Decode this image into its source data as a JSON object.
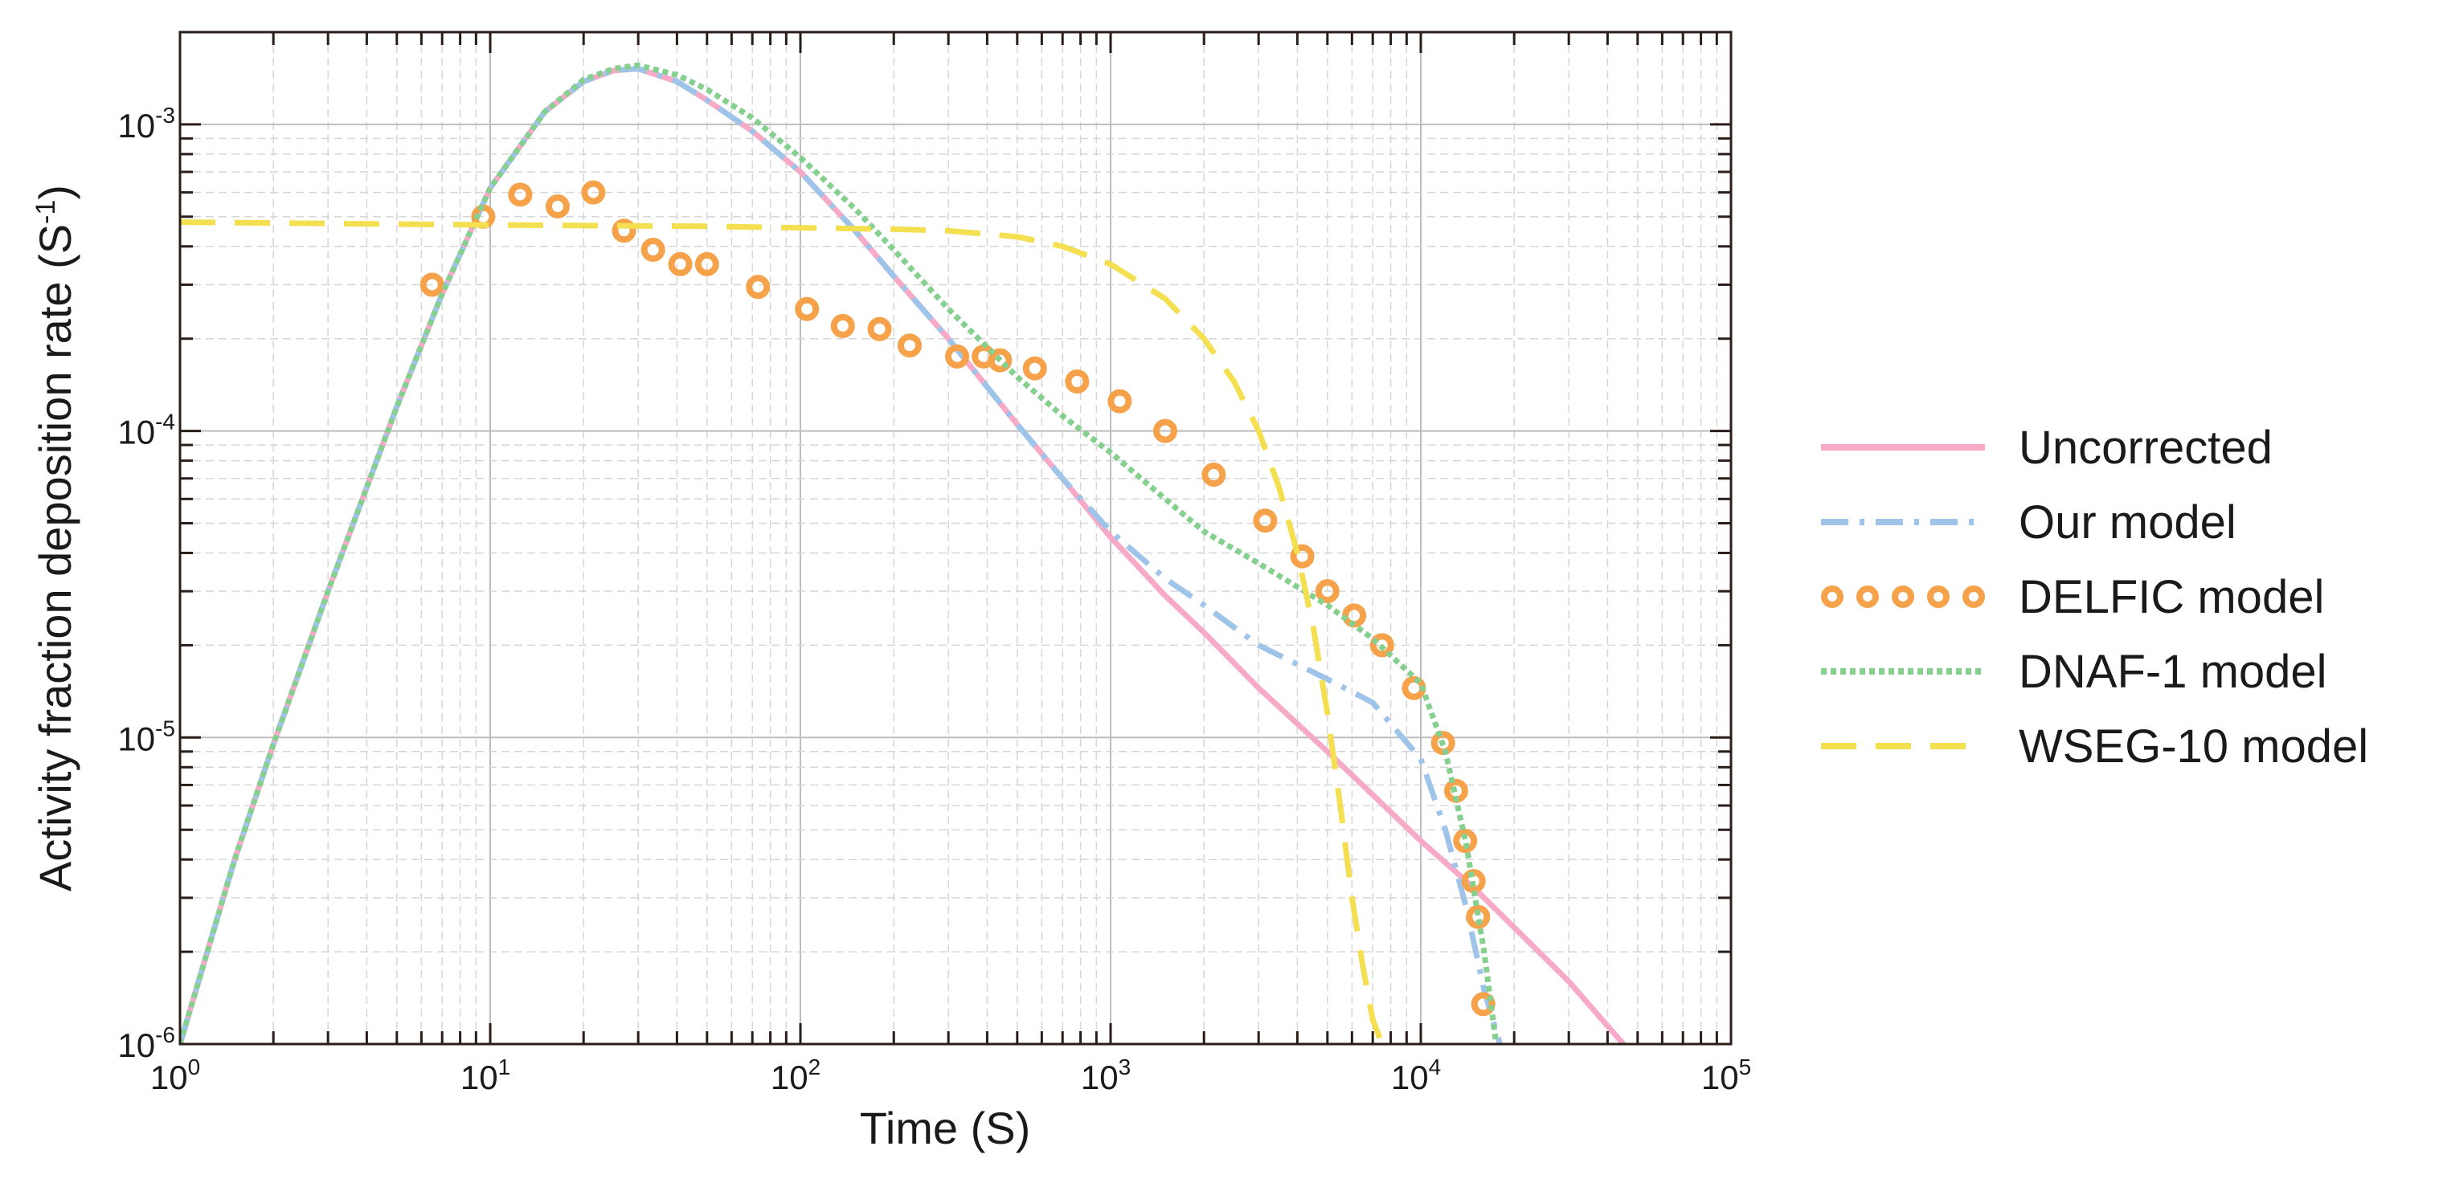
{
  "chart_data": {
    "type": "line",
    "title": "",
    "xlabel": "Time (S)",
    "ylabel": "Activity fraction deposition rate (S",
    "ylabel_sup": "-1",
    "ylabel_close": ")",
    "xscale": "log",
    "yscale": "log",
    "xlim": [
      1,
      100000
    ],
    "ylim": [
      1e-06,
      0.002
    ],
    "grid": true,
    "legend_position": "right",
    "x_ticks": [
      {
        "base": "10",
        "exp": "0"
      },
      {
        "base": "10",
        "exp": "1"
      },
      {
        "base": "10",
        "exp": "2"
      },
      {
        "base": "10",
        "exp": "3"
      },
      {
        "base": "10",
        "exp": "4"
      },
      {
        "base": "10",
        "exp": "5"
      }
    ],
    "y_ticks": [
      {
        "base": "10",
        "exp": "-6"
      },
      {
        "base": "10",
        "exp": "-5"
      },
      {
        "base": "10",
        "exp": "-4"
      },
      {
        "base": "10",
        "exp": "-3"
      }
    ],
    "series": [
      {
        "name": "Uncorrected",
        "color": "#f7aac8",
        "style": "solid",
        "x": [
          1,
          1.5,
          2,
          3,
          5,
          7,
          10,
          15,
          20,
          25,
          30,
          40,
          50,
          70,
          100,
          150,
          200,
          300,
          500,
          700,
          1000,
          1500,
          2000,
          3000,
          5000,
          7000,
          10000,
          15000,
          20000,
          30000,
          45000
        ],
        "y": [
          1e-06,
          4e-06,
          9.5e-06,
          3e-05,
          0.00012,
          0.00028,
          0.00062,
          0.0011,
          0.00138,
          0.0015,
          0.00152,
          0.00138,
          0.0012,
          0.00095,
          0.0007,
          0.00045,
          0.00032,
          0.0002,
          0.000105,
          7e-05,
          4.5e-05,
          2.9e-05,
          2.2e-05,
          1.45e-05,
          9e-06,
          6.5e-06,
          4.6e-06,
          3.2e-06,
          2.4e-06,
          1.6e-06,
          1e-06
        ]
      },
      {
        "name": "Our model",
        "color": "#9fc4ea",
        "style": "dashdot",
        "x": [
          1,
          1.5,
          2,
          3,
          5,
          7,
          10,
          15,
          20,
          25,
          30,
          40,
          50,
          70,
          100,
          150,
          200,
          300,
          500,
          700,
          1000,
          1500,
          2000,
          3000,
          5000,
          7000,
          10000,
          12000,
          14000,
          16000,
          18000
        ],
        "y": [
          1e-06,
          4e-06,
          9.5e-06,
          3e-05,
          0.00012,
          0.00028,
          0.00062,
          0.0011,
          0.00138,
          0.0015,
          0.00152,
          0.00138,
          0.0012,
          0.00095,
          0.0007,
          0.00045,
          0.00032,
          0.0002,
          0.000105,
          7e-05,
          4.7e-05,
          3.3e-05,
          2.7e-05,
          2e-05,
          1.55e-05,
          1.3e-05,
          8.5e-06,
          5e-06,
          2.8e-06,
          1.5e-06,
          1e-06
        ]
      },
      {
        "name": "DELFIC model",
        "color": "#f5a24b",
        "style": "circles",
        "x": [
          6.5,
          9.5,
          12.5,
          16.5,
          21.5,
          27,
          33.5,
          41,
          50,
          73,
          105,
          137,
          180,
          225,
          320,
          390,
          440,
          570,
          780,
          1070,
          1500,
          2150,
          3150,
          4150,
          5000,
          6100,
          7500,
          9500,
          11800,
          13000,
          13900,
          14800,
          15300,
          15900
        ],
        "y": [
          0.0003,
          0.0005,
          0.00059,
          0.00054,
          0.0006,
          0.00045,
          0.00039,
          0.00035,
          0.00035,
          0.000295,
          0.00025,
          0.00022,
          0.000215,
          0.00019,
          0.000175,
          0.000175,
          0.00017,
          0.00016,
          0.000145,
          0.000125,
          0.0001,
          7.2e-05,
          5.1e-05,
          3.9e-05,
          3e-05,
          2.5e-05,
          2e-05,
          1.45e-05,
          9.6e-06,
          6.7e-06,
          4.6e-06,
          3.4e-06,
          2.6e-06,
          1.35e-06
        ]
      },
      {
        "name": "DNAF-1 model",
        "color": "#85cf8f",
        "style": "dotted",
        "x": [
          1,
          1.5,
          2,
          3,
          5,
          7,
          10,
          15,
          20,
          25,
          30,
          40,
          50,
          70,
          100,
          150,
          200,
          300,
          500,
          700,
          1000,
          1500,
          2000,
          3000,
          5000,
          7000,
          10000,
          12000,
          14000,
          16000,
          17500
        ],
        "y": [
          1e-06,
          4e-06,
          9.5e-06,
          3e-05,
          0.00012,
          0.00028,
          0.00062,
          0.0011,
          0.0014,
          0.00152,
          0.00156,
          0.00145,
          0.0013,
          0.00105,
          0.00078,
          0.00053,
          0.00039,
          0.00025,
          0.00015,
          0.000112,
          8.5e-05,
          6e-05,
          4.7e-05,
          3.7e-05,
          2.7e-05,
          2.1e-05,
          1.5e-05,
          9e-06,
          4.5e-06,
          2e-06,
          1e-06
        ]
      },
      {
        "name": "WSEG-10 model",
        "color": "#f3df50",
        "style": "dashed",
        "x": [
          1,
          10,
          50,
          100,
          200,
          300,
          500,
          700,
          1000,
          1500,
          2000,
          2500,
          3000,
          3500,
          4000,
          4500,
          5000,
          5500,
          6000,
          6500,
          7000,
          7500
        ],
        "y": [
          0.00048,
          0.00047,
          0.000465,
          0.00046,
          0.000455,
          0.00045,
          0.00043,
          0.0004,
          0.00035,
          0.00027,
          0.0002,
          0.000145,
          0.0001,
          6.5e-05,
          4e-05,
          2.3e-05,
          1.2e-05,
          6e-06,
          3e-06,
          1.8e-06,
          1.2e-06,
          1e-06
        ]
      }
    ]
  }
}
